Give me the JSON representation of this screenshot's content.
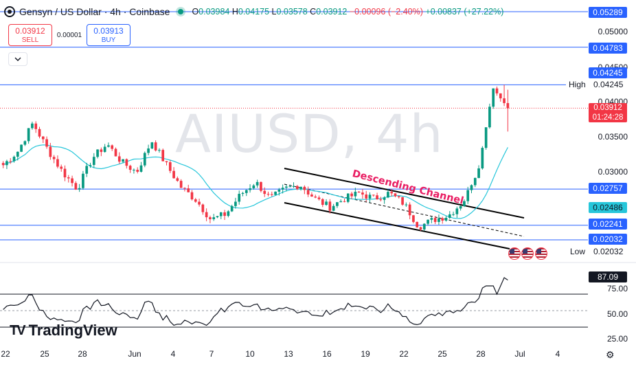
{
  "header": {
    "symbol_title": "Gensyn / US Dollar · 4h · Coinbase",
    "o_label": "O",
    "o_value": "0.03984",
    "h_label": "H",
    "h_value": "0.04175",
    "l_label": "L",
    "l_value": "0.03578",
    "c_label": "C",
    "c_value": "0.03912",
    "change": "−0.00096 (−2.40%)",
    "extra": "+0.00837 (+27.22%)"
  },
  "trade": {
    "sell_price": "0.03912",
    "sell_label": "SELL",
    "spread": "0.00001",
    "buy_price": "0.03913",
    "buy_label": "BUY"
  },
  "watermark": "AIUSD, 4h",
  "annotation": "Descending Channel",
  "logo": {
    "mark": "TV",
    "text": "TradingView"
  },
  "price_axis": {
    "ticks": [
      "0.05000",
      "0.04500",
      "0.04000",
      "0.03500",
      "0.03000"
    ],
    "tags": {
      "l1": "0.05289",
      "l2": "0.04783",
      "l3": "0.04245",
      "current": "0.03912",
      "countdown": "01:24:28",
      "l4": "0.02757",
      "ma": "0.02486",
      "l5": "0.02241",
      "l6": "0.02032"
    },
    "high_label": "High",
    "high_value": "0.04245",
    "low_label": "Low",
    "low_value": "0.02032"
  },
  "rsi_axis": {
    "value": "87.09",
    "ticks": [
      "75.00",
      "50.00",
      "25.00"
    ]
  },
  "time_axis": [
    "22",
    "25",
    "28",
    "Jun",
    "4",
    "7",
    "10",
    "13",
    "16",
    "19",
    "22",
    "25",
    "28",
    "Jul",
    "4"
  ],
  "colors": {
    "up": "#089981",
    "down": "#f23645",
    "ma": "#26c6da",
    "hline": "#2962ff",
    "tag": "#2962ff",
    "rsi": "#131722",
    "annotation": "#e91e63"
  },
  "chart_data": {
    "type": "candlestick",
    "timeframe": "4h",
    "ylim": [
      0.019,
      0.054
    ],
    "horizontal_levels": [
      0.05289,
      0.04783,
      0.04245,
      0.02757,
      0.02241,
      0.02032
    ],
    "anchors": [
      [
        0.0312,
        0.031
      ],
      [
        0.0325,
        0.033
      ],
      [
        0.0345,
        0.037
      ],
      [
        0.0338,
        0.0332
      ],
      [
        0.0315,
        0.03
      ],
      [
        0.029,
        0.0276
      ],
      [
        0.0305,
        0.032
      ],
      [
        0.036,
        0.034
      ],
      [
        0.0325,
        0.0314
      ],
      [
        0.0308,
        0.03
      ],
      [
        0.031,
        0.0345
      ],
      [
        0.033,
        0.031
      ],
      [
        0.0295,
        0.0278
      ],
      [
        0.0275,
        0.026
      ],
      [
        0.0245,
        0.0232
      ],
      [
        0.0238,
        0.024
      ],
      [
        0.0255,
        0.0268
      ],
      [
        0.0282,
        0.0286
      ],
      [
        0.027,
        0.0262
      ],
      [
        0.0265,
        0.0276
      ],
      [
        0.028,
        0.0282
      ],
      [
        0.0272,
        0.0262
      ],
      [
        0.0255,
        0.025
      ],
      [
        0.0258,
        0.0262
      ],
      [
        0.0265,
        0.027
      ],
      [
        0.0266,
        0.0262
      ],
      [
        0.027,
        0.027
      ],
      [
        0.0265,
        0.0255
      ],
      [
        0.0245,
        0.0222
      ],
      [
        0.0238,
        0.0232
      ],
      [
        0.0235,
        0.0238
      ],
      [
        0.024,
        0.0258
      ],
      [
        0.0275,
        0.03
      ],
      [
        0.033,
        0.042
      ],
      [
        0.0398,
        0.0391
      ]
    ],
    "rsi": {
      "last": 87.09,
      "levels": [
        70,
        50,
        30
      ]
    }
  }
}
